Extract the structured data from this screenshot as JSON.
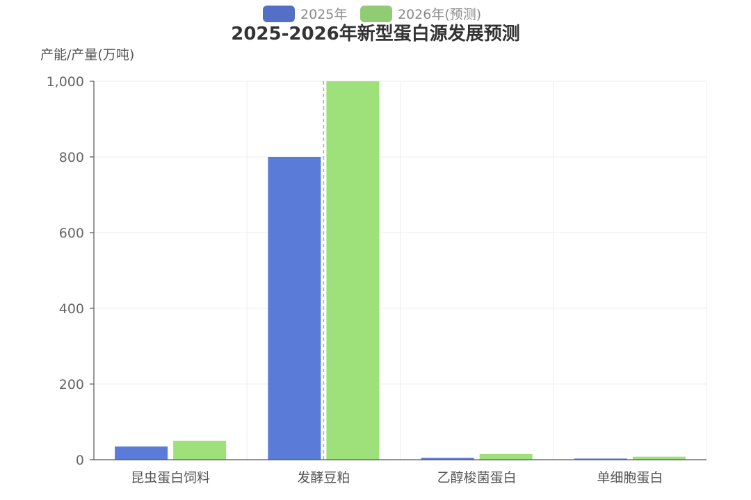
{
  "chart_data": {
    "type": "bar",
    "title": "2025-2026年新型蛋白源发展预测",
    "ylabel": "产能/产量(万吨)",
    "xlabel": "",
    "categories": [
      "昆虫蛋白饲料",
      "发酵豆粕",
      "乙醇梭菌蛋白",
      "单细胞蛋白"
    ],
    "series": [
      {
        "name": "2025年",
        "values": [
          35,
          800,
          5,
          3
        ],
        "color": "#5b7bd9"
      },
      {
        "name": "2026年(预测)",
        "values": [
          50,
          1000,
          15,
          8
        ],
        "color": "#9ee07a"
      }
    ],
    "legend_colors": [
      "#5470c6",
      "#91cc75"
    ],
    "ylim": [
      0,
      1000
    ],
    "yticks": [
      0,
      200,
      400,
      600,
      800,
      1000
    ],
    "ytick_labels": [
      "0",
      "200",
      "400",
      "600",
      "800",
      "1,000"
    ],
    "grid": true,
    "legend_position": "top-center",
    "highlight_category_index": 1
  }
}
